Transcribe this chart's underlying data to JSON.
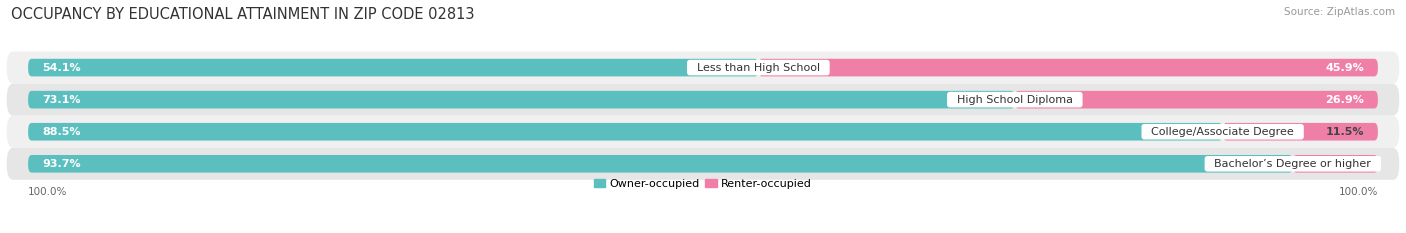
{
  "title": "OCCUPANCY BY EDUCATIONAL ATTAINMENT IN ZIP CODE 02813",
  "source": "Source: ZipAtlas.com",
  "categories": [
    "Less than High School",
    "High School Diploma",
    "College/Associate Degree",
    "Bachelor’s Degree or higher"
  ],
  "owner_pct": [
    54.1,
    73.1,
    88.5,
    93.7
  ],
  "renter_pct": [
    45.9,
    26.9,
    11.5,
    6.3
  ],
  "owner_color": "#5bbfc0",
  "renter_color": "#f07fa8",
  "row_bg_even": "#f0f0f0",
  "row_bg_odd": "#e6e6e6",
  "label_bg_color": "#ffffff",
  "axis_label_left": "100.0%",
  "axis_label_right": "100.0%",
  "legend_owner": "Owner-occupied",
  "legend_renter": "Renter-occupied",
  "title_fontsize": 10.5,
  "source_fontsize": 7.5,
  "bar_label_fontsize": 8,
  "category_fontsize": 8,
  "axis_fontsize": 7.5,
  "legend_fontsize": 8
}
